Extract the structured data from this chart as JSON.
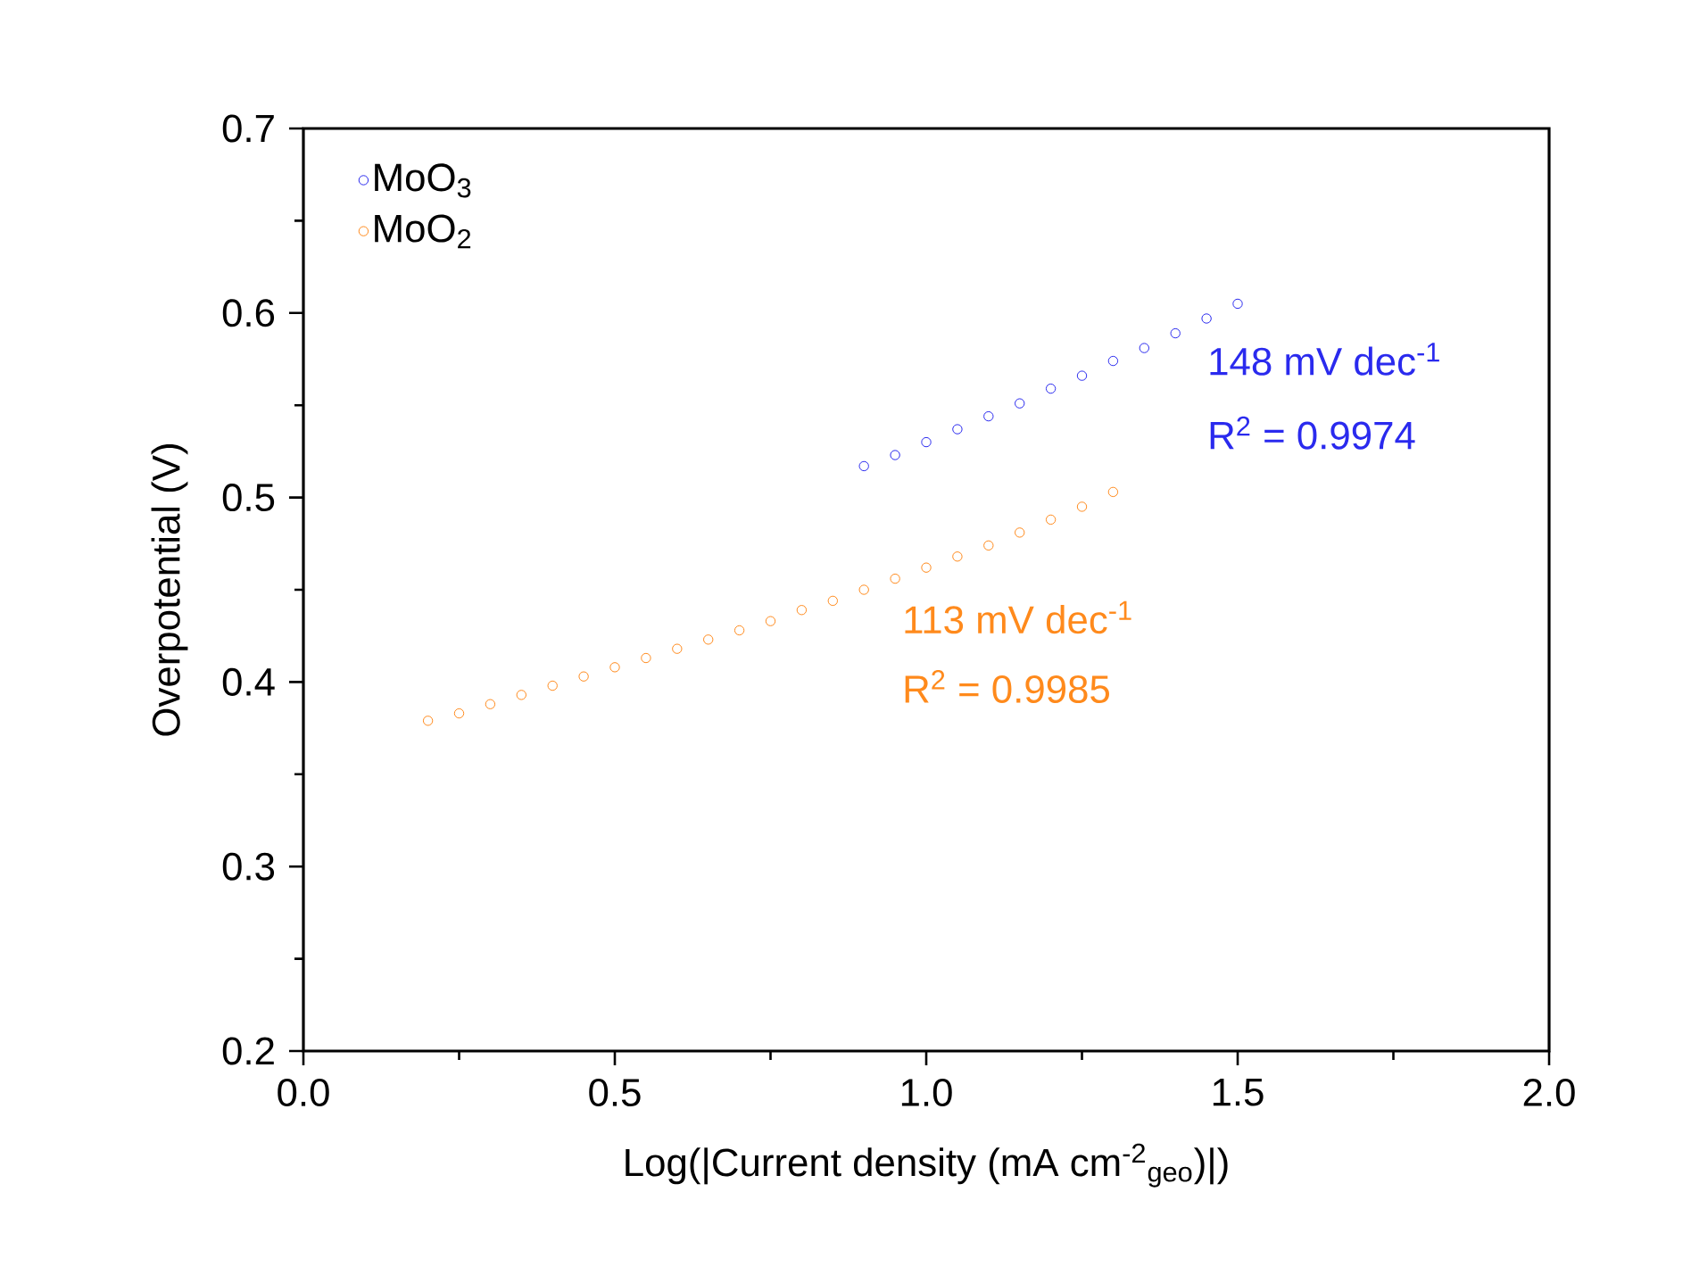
{
  "chart_data": {
    "type": "scatter",
    "xlabel": "Log(|Current density (mA cm$^{-2}$$_{geo}$)|)",
    "ylabel": "Overpotential (V)",
    "xlim": [
      0,
      2
    ],
    "ylim": [
      0.2,
      0.7
    ],
    "xticks": [
      {
        "value": 0,
        "label": "0.0"
      },
      {
        "value": 0.5,
        "label": "0.5"
      },
      {
        "value": 1,
        "label": "1.0"
      },
      {
        "value": 1.5,
        "label": "1.5"
      },
      {
        "value": 2,
        "label": "2.0"
      }
    ],
    "yticks": [
      {
        "value": 0.2,
        "label": "0.2"
      },
      {
        "value": 0.3,
        "label": "0.3"
      },
      {
        "value": 0.4,
        "label": "0.4"
      },
      {
        "value": 0.5,
        "label": "0.5"
      },
      {
        "value": 0.6,
        "label": "0.6"
      },
      {
        "value": 0.7,
        "label": "0.7"
      }
    ],
    "marker": "circle",
    "legend": "top left",
    "grid": false,
    "series": [
      {
        "name": "MoO$_{3}$",
        "color": "#2a2aee",
        "x": [
          0.9,
          0.95,
          1.0,
          1.05,
          1.1,
          1.15,
          1.2,
          1.25,
          1.3,
          1.35,
          1.4,
          1.45,
          1.5
        ],
        "values": [
          0.517,
          0.523,
          0.53,
          0.537,
          0.544,
          0.551,
          0.559,
          0.566,
          0.574,
          0.581,
          0.589,
          0.597,
          0.605
        ]
      },
      {
        "name": "MoO$_{2}$",
        "color": "#ff8a1c",
        "x": [
          0.2,
          0.25,
          0.3,
          0.35,
          0.4,
          0.45,
          0.5,
          0.55,
          0.6,
          0.65,
          0.7,
          0.75,
          0.8,
          0.85,
          0.9,
          0.95,
          1.0,
          1.05,
          1.1,
          1.15,
          1.2,
          1.25,
          1.3
        ],
        "values": [
          0.379,
          0.383,
          0.388,
          0.393,
          0.398,
          0.403,
          0.408,
          0.413,
          0.418,
          0.423,
          0.428,
          0.433,
          0.439,
          0.444,
          0.45,
          0.456,
          0.462,
          0.468,
          0.474,
          0.481,
          0.488,
          0.495,
          0.503
        ]
      }
    ],
    "annotations": [
      "148 mV dec$^{-1}$",
      "R$^{2}$ = 0.9974",
      "113 mV dec$^{-1}$",
      "R$^{2}$ = 0.9985"
    ]
  }
}
